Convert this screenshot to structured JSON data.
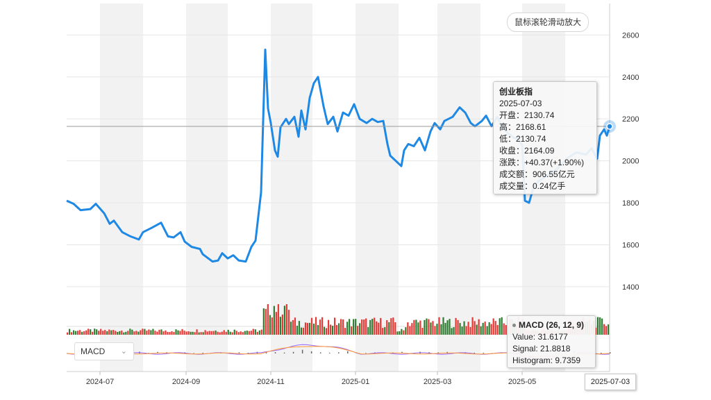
{
  "zoom_hint": "鼠标滚轮滑动放大",
  "indicator_selector": {
    "value": "MACD"
  },
  "colors": {
    "line": "#1e88e5",
    "up": "#e53935",
    "down": "#2e7d32",
    "macd_dif": "#9966ff",
    "macd_dea": "#ff9933"
  },
  "tooltip": {
    "name": "创业板指",
    "date": "2025-07-03",
    "open": "开盘：2130.74",
    "high": "高：2168.61",
    "low": "低：2130.74",
    "close": "收盘：2164.09",
    "change": "涨跌：+40.37(+1.90%)",
    "turnover": "成交额：906.55亿元",
    "volume": "成交量：0.24亿手"
  },
  "macd_tooltip": {
    "title": "MACD (26, 12, 9)",
    "value": "Value: 31.6177",
    "signal": "Signal: 21.8818",
    "histogram": "Histogram: 9.7359"
  },
  "crosshair_date": "2025-07-03",
  "chart_data": {
    "type": "line",
    "name": "创业板指",
    "y_ticks": [
      1400,
      1600,
      1800,
      2000,
      2200,
      2400,
      2600
    ],
    "ylim": [
      1350,
      2750
    ],
    "x_ticks": [
      "2024-07",
      "2024-09",
      "2024-11",
      "2025-01",
      "2025-03",
      "2025-05"
    ],
    "x_range": [
      "2024-06-07",
      "2025-07-03"
    ],
    "series": [
      {
        "values": [
          [
            "2024-06-07",
            1810
          ],
          [
            "2024-06-12",
            1795
          ],
          [
            "2024-06-17",
            1765
          ],
          [
            "2024-06-24",
            1770
          ],
          [
            "2024-06-28",
            1795
          ],
          [
            "2024-07-04",
            1750
          ],
          [
            "2024-07-08",
            1700
          ],
          [
            "2024-07-11",
            1715
          ],
          [
            "2024-07-17",
            1660
          ],
          [
            "2024-07-23",
            1640
          ],
          [
            "2024-07-29",
            1625
          ],
          [
            "2024-08-01",
            1660
          ],
          [
            "2024-08-07",
            1680
          ],
          [
            "2024-08-14",
            1705
          ],
          [
            "2024-08-19",
            1640
          ],
          [
            "2024-08-23",
            1635
          ],
          [
            "2024-08-28",
            1660
          ],
          [
            "2024-08-31",
            1615
          ],
          [
            "2024-09-05",
            1590
          ],
          [
            "2024-09-11",
            1580
          ],
          [
            "2024-09-13",
            1555
          ],
          [
            "2024-09-18",
            1530
          ],
          [
            "2024-09-20",
            1520
          ],
          [
            "2024-09-24",
            1525
          ],
          [
            "2024-09-27",
            1560
          ],
          [
            "2024-10-01",
            1535
          ],
          [
            "2024-10-05",
            1550
          ],
          [
            "2024-10-09",
            1525
          ],
          [
            "2024-10-14",
            1520
          ],
          [
            "2024-10-18",
            1590
          ],
          [
            "2024-10-21",
            1620
          ],
          [
            "2024-10-25",
            1850
          ],
          [
            "2024-10-28",
            2530
          ],
          [
            "2024-10-30",
            2250
          ],
          [
            "2024-11-01",
            2180
          ],
          [
            "2024-11-04",
            2050
          ],
          [
            "2024-11-06",
            2020
          ],
          [
            "2024-11-08",
            2160
          ],
          [
            "2024-11-12",
            2200
          ],
          [
            "2024-11-14",
            2175
          ],
          [
            "2024-11-18",
            2210
          ],
          [
            "2024-11-21",
            2115
          ],
          [
            "2024-11-23",
            2240
          ],
          [
            "2024-11-26",
            2150
          ],
          [
            "2024-11-29",
            2300
          ],
          [
            "2024-12-02",
            2370
          ],
          [
            "2024-12-05",
            2400
          ],
          [
            "2024-12-09",
            2260
          ],
          [
            "2024-12-12",
            2175
          ],
          [
            "2024-12-16",
            2210
          ],
          [
            "2024-12-19",
            2140
          ],
          [
            "2024-12-23",
            2230
          ],
          [
            "2024-12-27",
            2215
          ],
          [
            "2024-12-31",
            2270
          ],
          [
            "2025-01-04",
            2200
          ],
          [
            "2025-01-09",
            2180
          ],
          [
            "2025-01-13",
            2200
          ],
          [
            "2025-01-17",
            2185
          ],
          [
            "2025-01-21",
            2190
          ],
          [
            "2025-01-24",
            2080
          ],
          [
            "2025-01-26",
            2025
          ],
          [
            "2025-01-30",
            2000
          ],
          [
            "2025-02-03",
            1975
          ],
          [
            "2025-02-05",
            2050
          ],
          [
            "2025-02-08",
            2080
          ],
          [
            "2025-02-12",
            2070
          ],
          [
            "2025-02-16",
            2110
          ],
          [
            "2025-02-20",
            2050
          ],
          [
            "2025-02-24",
            2140
          ],
          [
            "2025-02-27",
            2180
          ],
          [
            "2025-03-03",
            2150
          ],
          [
            "2025-03-06",
            2190
          ],
          [
            "2025-03-12",
            2210
          ],
          [
            "2025-03-17",
            2255
          ],
          [
            "2025-03-21",
            2230
          ],
          [
            "2025-03-25",
            2180
          ],
          [
            "2025-03-28",
            2165
          ],
          [
            "2025-04-02",
            2190
          ],
          [
            "2025-04-05",
            2215
          ],
          [
            "2025-04-09",
            2165
          ],
          [
            "2025-04-13",
            2210
          ],
          [
            "2025-04-17",
            2160
          ],
          [
            "2025-04-21",
            2130
          ],
          [
            "2025-04-25",
            2110
          ],
          [
            "2025-04-28",
            2105
          ],
          [
            "2025-05-01",
            2075
          ],
          [
            "2025-05-03",
            1810
          ],
          [
            "2025-05-06",
            1800
          ],
          [
            "2025-05-09",
            1870
          ],
          [
            "2025-05-13",
            1905
          ],
          [
            "2025-05-19",
            1930
          ],
          [
            "2025-05-26",
            1960
          ],
          [
            "2025-06-02",
            2010
          ],
          [
            "2025-06-09",
            2040
          ],
          [
            "2025-06-16",
            2030
          ],
          [
            "2025-06-20",
            2060
          ],
          [
            "2025-06-24",
            2010
          ],
          [
            "2025-06-26",
            2120
          ],
          [
            "2025-06-29",
            2150
          ],
          [
            "2025-07-01",
            2120
          ],
          [
            "2025-07-03",
            2164
          ]
        ]
      }
    ],
    "highlight_point": [
      "2025-07-03",
      2164
    ],
    "grid": true
  }
}
